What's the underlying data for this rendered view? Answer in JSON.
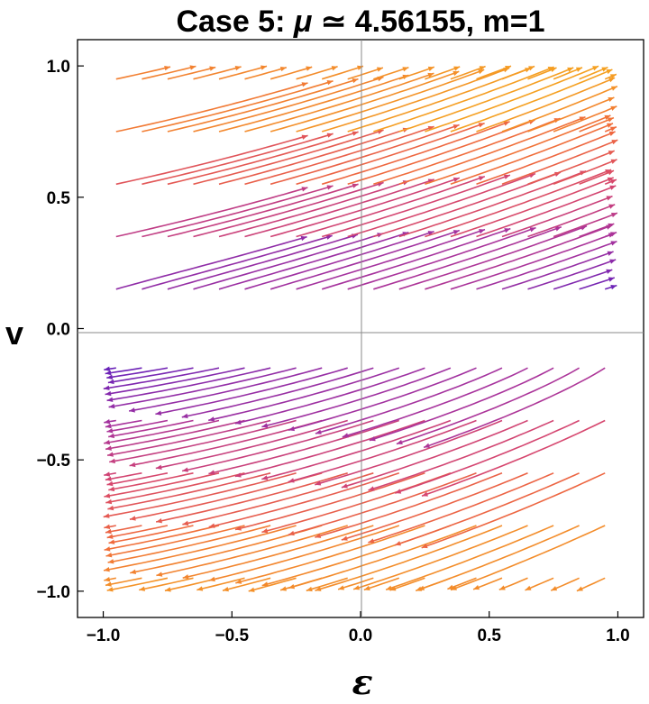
{
  "chart_data": {
    "type": "stream",
    "title_prefix": "Case 5: ",
    "title_mu": "μ",
    "title_suffix": " ≃ 4.56155, m=1",
    "xlabel": "ε",
    "ylabel": "v",
    "xlim": [
      -1.1,
      1.1
    ],
    "ylim": [
      -1.1,
      1.1
    ],
    "x_ticks": [
      -1.0,
      -0.5,
      0.0,
      0.5,
      1.0
    ],
    "y_ticks": [
      -1.0,
      -0.5,
      0.0,
      0.5,
      1.0
    ],
    "x_tick_labels": [
      "−1.0",
      "−0.5",
      "0.0",
      "0.5",
      "1.0"
    ],
    "y_tick_labels": [
      "−1.0",
      "−0.5",
      "0.0",
      "0.5",
      "1.0"
    ],
    "grid": false,
    "axes_through_origin": true,
    "colormap": [
      "#2b14c6",
      "#6a22b8",
      "#a8339c",
      "#d6466e",
      "#f06a3c",
      "#f5a020"
    ],
    "seeds_x": [
      -0.95,
      -0.85,
      -0.75,
      -0.65,
      -0.55,
      -0.45,
      -0.35,
      -0.25,
      -0.15,
      -0.05,
      0.05,
      0.15,
      0.25,
      0.35,
      0.45,
      0.55,
      0.65,
      0.75,
      0.85,
      0.95
    ],
    "seeds_y": [
      -0.95,
      -0.75,
      -0.55,
      -0.35,
      -0.15,
      0.15,
      0.35,
      0.55,
      0.75,
      0.95
    ]
  }
}
